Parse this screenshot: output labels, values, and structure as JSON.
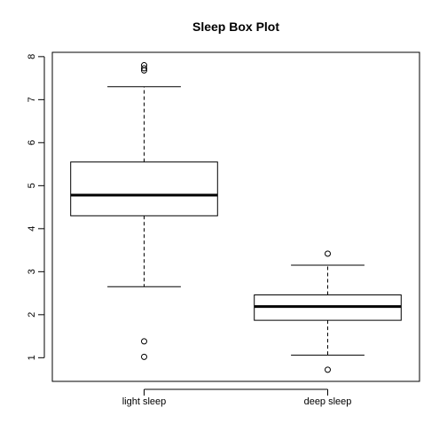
{
  "chart_data": {
    "type": "boxplot",
    "title": "Sleep Box Plot",
    "xlabel": "",
    "ylabel": "",
    "ylim": [
      0.45,
      8.1
    ],
    "yticks": [
      1,
      2,
      3,
      4,
      5,
      6,
      7,
      8
    ],
    "grid": false,
    "legend": "none",
    "categories": [
      "light sleep",
      "deep sleep"
    ],
    "boxes": [
      {
        "label": "light sleep",
        "whisker_low": 2.65,
        "q1": 4.3,
        "median": 4.78,
        "q3": 5.55,
        "whisker_high": 7.3,
        "outliers": [
          7.8,
          7.73,
          7.68,
          1.38,
          1.02
        ]
      },
      {
        "label": "deep sleep",
        "whisker_low": 1.06,
        "q1": 1.87,
        "median": 2.19,
        "q3": 2.46,
        "whisker_high": 3.15,
        "outliers": [
          3.42,
          0.72
        ]
      }
    ]
  }
}
